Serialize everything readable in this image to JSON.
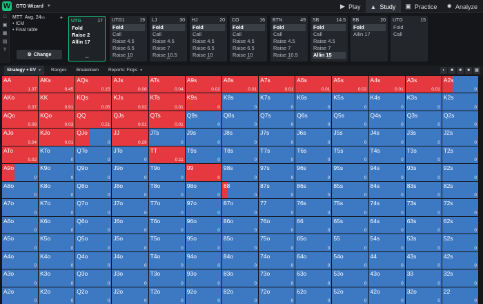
{
  "app": {
    "title": "GTO Wizard"
  },
  "nav": {
    "tabs": [
      {
        "label": "Play",
        "icon": "play-icon"
      },
      {
        "label": "Study",
        "icon": "graduation-cap-icon",
        "active": true
      },
      {
        "label": "Practice",
        "icon": "gamepad-icon"
      },
      {
        "label": "Analyze",
        "icon": "brain-icon"
      }
    ]
  },
  "info": {
    "game": "MTT",
    "avg": "Avg. 24",
    "bb_unit": "bb",
    "line1": "• ICM",
    "line2": "• Final table",
    "change_label": "Change"
  },
  "positions": [
    {
      "name": "UTG",
      "stack": "17",
      "actions": [
        "Fold",
        "Raise 2",
        "Allin 17"
      ],
      "selected": [],
      "active": true
    },
    {
      "name": "UTG1",
      "stack": "19",
      "actions": [
        "Fold",
        "Call",
        "Raise 4.5",
        "Raise 6.5",
        "Raise 10"
      ],
      "selected": [
        0
      ]
    },
    {
      "name": "LJ",
      "stack": "30",
      "actions": [
        "Fold",
        "Call",
        "Raise 4.5",
        "Raise 7",
        "Raise 10.5"
      ],
      "selected": [
        0
      ]
    },
    {
      "name": "HJ",
      "stack": "20",
      "actions": [
        "Fold",
        "Call",
        "Raise 4.5",
        "Raise 6.5",
        "Raise 10"
      ],
      "selected": [
        0
      ]
    },
    {
      "name": "CO",
      "stack": "16",
      "actions": [
        "Fold",
        "Call",
        "Raise 4.5",
        "Raise 6.5",
        "Raise 10"
      ],
      "selected": [
        0
      ]
    },
    {
      "name": "BTN",
      "stack": "49",
      "actions": [
        "Fold",
        "Call",
        "Raise 4.5",
        "Raise 7",
        "Raise 10.5"
      ],
      "selected": [
        0
      ]
    },
    {
      "name": "SB",
      "stack": "14.5",
      "actions": [
        "Fold",
        "Call",
        "Raise 4.5",
        "Raise 7",
        "Allin 15"
      ],
      "selected": [
        0,
        4
      ]
    },
    {
      "name": "BB",
      "stack": "20",
      "actions": [
        "Fold",
        "Allin 17"
      ],
      "selected": [
        0
      ]
    },
    {
      "name": "UTG",
      "stack": "15",
      "actions": [
        "Fold",
        "Call"
      ],
      "selected": []
    }
  ],
  "subtabs": {
    "strategy": "Strategy + EV",
    "ranges": "Ranges",
    "breakdown": "Breakdown",
    "reports": "Reports: Flops"
  },
  "colors": {
    "raise": "#e6393f",
    "fold": "#3d78c2",
    "accent": "#19c37d"
  },
  "grid": {
    "hands": [
      [
        "AA",
        "AKs",
        "AQs",
        "AJs",
        "ATs",
        "A9s",
        "A8s",
        "A7s",
        "A6s",
        "A5s",
        "A4s",
        "A3s",
        "A2s"
      ],
      [
        "AKo",
        "KK",
        "KQs",
        "KJs",
        "KTs",
        "K9s",
        "K8s",
        "K7s",
        "K6s",
        "K5s",
        "K4s",
        "K3s",
        "K2s"
      ],
      [
        "AQo",
        "KQo",
        "QQ",
        "QJs",
        "QTs",
        "Q9s",
        "Q8s",
        "Q7s",
        "Q6s",
        "Q5s",
        "Q4s",
        "Q3s",
        "Q2s"
      ],
      [
        "AJo",
        "KJo",
        "QJo",
        "JJ",
        "JTs",
        "J9s",
        "J8s",
        "J7s",
        "J6s",
        "J5s",
        "J4s",
        "J3s",
        "J2s"
      ],
      [
        "ATo",
        "KTo",
        "QTo",
        "JTo",
        "TT",
        "T9s",
        "T8s",
        "T7s",
        "T6s",
        "T5s",
        "T4s",
        "T3s",
        "T2s"
      ],
      [
        "A9o",
        "K9o",
        "Q9o",
        "J9o",
        "T9o",
        "99",
        "98s",
        "97s",
        "96s",
        "95s",
        "94s",
        "93s",
        "92s"
      ],
      [
        "A8o",
        "K8o",
        "Q8o",
        "J8o",
        "T8o",
        "98o",
        "88",
        "87s",
        "86s",
        "85s",
        "84s",
        "83s",
        "82s"
      ],
      [
        "A7o",
        "K7o",
        "Q7o",
        "J7o",
        "T7o",
        "97o",
        "87o",
        "77",
        "76s",
        "75s",
        "74s",
        "73s",
        "72s"
      ],
      [
        "A6o",
        "K6o",
        "Q6o",
        "J6o",
        "T6o",
        "96o",
        "86o",
        "76o",
        "66",
        "65s",
        "64s",
        "63s",
        "62s"
      ],
      [
        "A5o",
        "K5o",
        "Q5o",
        "J5o",
        "T5o",
        "95o",
        "85o",
        "75o",
        "65o",
        "55",
        "54s",
        "53s",
        "52s"
      ],
      [
        "A4o",
        "K4o",
        "Q4o",
        "J4o",
        "T4o",
        "94o",
        "84o",
        "74o",
        "64o",
        "54o",
        "44",
        "43s",
        "42s"
      ],
      [
        "A3o",
        "K3o",
        "Q3o",
        "J3o",
        "T3o",
        "93o",
        "83o",
        "73o",
        "63o",
        "53o",
        "43o",
        "33",
        "32s"
      ],
      [
        "A2o",
        "K2o",
        "Q2o",
        "J2o",
        "T2o",
        "92o",
        "82o",
        "72o",
        "62o",
        "52o",
        "42o",
        "32o",
        "22"
      ]
    ],
    "ev": [
      [
        "1.37",
        "0.45",
        "0.15",
        "0.08",
        "0.04",
        "0.02",
        "0.01",
        "0.01",
        "0.01",
        "0.02",
        "0.01",
        "0.01",
        "0"
      ],
      [
        "0.37",
        "0.91",
        "0.05",
        "0.02",
        "0.01",
        "0",
        "0",
        "0",
        "0",
        "0",
        "0",
        "0",
        "0"
      ],
      [
        "0.08",
        "0.03",
        "0.51",
        "0.01",
        "0.01",
        "0",
        "0",
        "0",
        "0",
        "0",
        "0",
        "0",
        "0"
      ],
      [
        "0.04",
        "0.01",
        "0",
        "0.29",
        "0",
        "0",
        "0",
        "0",
        "0",
        "0",
        "0",
        "0",
        "0"
      ],
      [
        "0.02",
        "0",
        "0",
        "0",
        "0.11",
        "0",
        "0",
        "0",
        "0",
        "0",
        "0",
        "0",
        "0"
      ],
      [
        "0",
        "0",
        "0",
        "0",
        "0",
        "0",
        "0",
        "0",
        "0",
        "0",
        "0",
        "0",
        "0"
      ],
      [
        "0",
        "0",
        "0",
        "0",
        "0",
        "0",
        "0",
        "0",
        "0",
        "0",
        "0",
        "0",
        "0"
      ],
      [
        "0",
        "0",
        "0",
        "0",
        "0",
        "0",
        "0",
        "0",
        "0",
        "0",
        "0",
        "0",
        "0"
      ],
      [
        "0",
        "0",
        "0",
        "0",
        "0",
        "0",
        "0",
        "0",
        "0",
        "0",
        "0",
        "0",
        "0"
      ],
      [
        "0",
        "0",
        "0",
        "0",
        "0",
        "0",
        "0",
        "0",
        "0",
        "0",
        "0",
        "0",
        "0"
      ],
      [
        "0",
        "0",
        "0",
        "0",
        "0",
        "0",
        "0",
        "0",
        "0",
        "0",
        "0",
        "0",
        "0"
      ],
      [
        "0",
        "0",
        "0",
        "0",
        "0",
        "0",
        "0",
        "0",
        "0",
        "0",
        "0",
        "0",
        "0"
      ],
      [
        "0",
        "0",
        "0",
        "0",
        "0",
        "0",
        "0",
        "0",
        "0",
        "0",
        "0",
        "0",
        "0"
      ]
    ],
    "raise_frac": [
      [
        1,
        1,
        1,
        1,
        1,
        1,
        1,
        1,
        1,
        1,
        1,
        1,
        0.3
      ],
      [
        1,
        1,
        1,
        1,
        1,
        1,
        0,
        0,
        0,
        0,
        0,
        0,
        0
      ],
      [
        1,
        1,
        1,
        1,
        1,
        0,
        0,
        0,
        0,
        0,
        0,
        0,
        0
      ],
      [
        1,
        1,
        0.4,
        1,
        0,
        0,
        0,
        0,
        0,
        0,
        0,
        0,
        0
      ],
      [
        1,
        0,
        0,
        0,
        1,
        0,
        0,
        0,
        0,
        0,
        0,
        0,
        0
      ],
      [
        0.35,
        0,
        0,
        0,
        0,
        1,
        0,
        0,
        0,
        0,
        0,
        0,
        0
      ],
      [
        0,
        0,
        0,
        0,
        0,
        0,
        0.15,
        0,
        0,
        0,
        0,
        0,
        0
      ],
      [
        0,
        0,
        0,
        0,
        0,
        0,
        0,
        0,
        0,
        0,
        0,
        0,
        0
      ],
      [
        0,
        0,
        0,
        0,
        0,
        0,
        0,
        0,
        0,
        0,
        0,
        0,
        0
      ],
      [
        0,
        0,
        0,
        0,
        0,
        0,
        0,
        0,
        0,
        0,
        0,
        0,
        0
      ],
      [
        0,
        0,
        0,
        0,
        0,
        0,
        0,
        0,
        0,
        0,
        0,
        0,
        0
      ],
      [
        0,
        0,
        0,
        0,
        0,
        0,
        0,
        0,
        0,
        0,
        0,
        0,
        0
      ],
      [
        0,
        0,
        0,
        0,
        0,
        0,
        0,
        0,
        0,
        0,
        0,
        0,
        0
      ]
    ]
  }
}
